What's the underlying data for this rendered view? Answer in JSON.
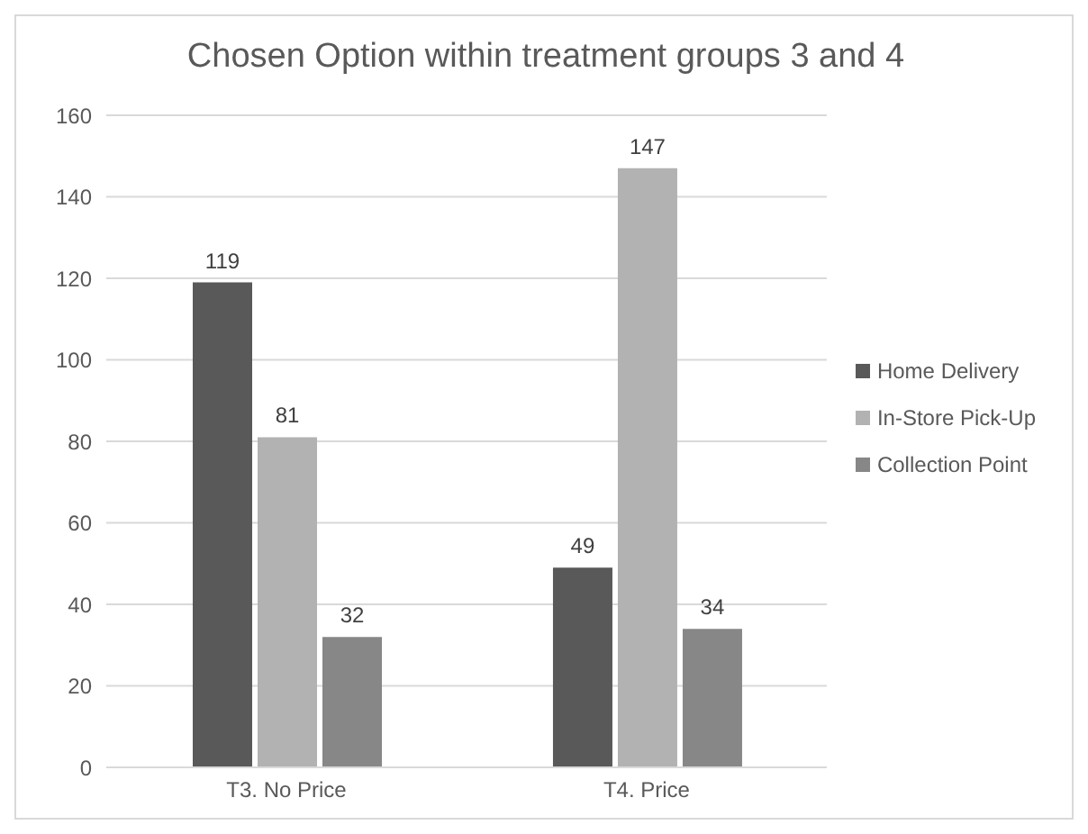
{
  "chart_data": {
    "type": "bar",
    "title": "Chosen Option within treatment groups 3 and 4",
    "categories": [
      "T3. No Price",
      "T4. Price"
    ],
    "series": [
      {
        "name": "Home Delivery",
        "color": "#595959",
        "values": [
          119,
          49
        ]
      },
      {
        "name": "In-Store Pick-Up",
        "color": "#b2b2b2",
        "values": [
          81,
          147
        ]
      },
      {
        "name": "Collection Point",
        "color": "#878787",
        "values": [
          32,
          34
        ]
      }
    ],
    "ylim": [
      0,
      160
    ],
    "yticks": [
      0,
      20,
      40,
      60,
      80,
      100,
      120,
      140,
      160
    ],
    "grid": "y",
    "legend": "right",
    "data_labels": true
  }
}
